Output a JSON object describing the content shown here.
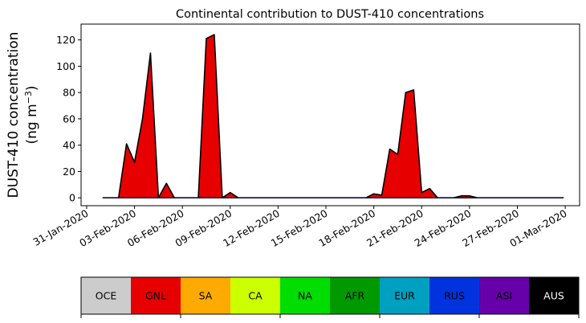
{
  "chart_data": {
    "type": "area",
    "title": "Continental contribution to DUST-410 concentrations",
    "ylabel_line1": "DUST-410 concentration",
    "ylabel_line2": "(ng m",
    "ylabel_sup": "−3",
    "ylabel_close": ")",
    "ylim": [
      -6,
      132
    ],
    "yticks": [
      0,
      20,
      40,
      60,
      80,
      100,
      120
    ],
    "x_start": "2020-01-31",
    "x_range_days": [
      -0.35,
      30.9
    ],
    "xticks": [
      "31-Jan-2020",
      "03-Feb-2020",
      "06-Feb-2020",
      "09-Feb-2020",
      "12-Feb-2020",
      "15-Feb-2020",
      "18-Feb-2020",
      "21-Feb-2020",
      "24-Feb-2020",
      "27-Feb-2020",
      "01-Mar-2020"
    ],
    "xtick_days": [
      0,
      3,
      6,
      9,
      12,
      15,
      18,
      21,
      24,
      27,
      30
    ],
    "grid": false,
    "series": [
      {
        "name": "GNL",
        "color": "#e60000",
        "points": [
          [
            1.0,
            0
          ],
          [
            2.0,
            0
          ],
          [
            2.5,
            41
          ],
          [
            3.0,
            27
          ],
          [
            3.5,
            60
          ],
          [
            4.0,
            110
          ],
          [
            4.5,
            0
          ],
          [
            5.0,
            11
          ],
          [
            5.5,
            0
          ],
          [
            6.0,
            0
          ],
          [
            6.5,
            0
          ],
          [
            7.0,
            0
          ],
          [
            7.5,
            121
          ],
          [
            8.0,
            124
          ],
          [
            8.5,
            0
          ],
          [
            9.0,
            4
          ],
          [
            9.5,
            0
          ],
          [
            10.0,
            0
          ],
          [
            11.0,
            0
          ],
          [
            12.0,
            0
          ],
          [
            13.0,
            0
          ],
          [
            14.0,
            0
          ],
          [
            15.0,
            0
          ],
          [
            16.0,
            0
          ],
          [
            17.0,
            0
          ],
          [
            17.5,
            0
          ],
          [
            18.0,
            3
          ],
          [
            18.5,
            2
          ],
          [
            19.0,
            37
          ],
          [
            19.5,
            33
          ],
          [
            20.0,
            80
          ],
          [
            20.5,
            82
          ],
          [
            21.0,
            4
          ],
          [
            21.5,
            7
          ],
          [
            22.0,
            0
          ],
          [
            22.5,
            0
          ],
          [
            23.0,
            0
          ],
          [
            23.5,
            1.5
          ],
          [
            24.0,
            1.5
          ],
          [
            24.5,
            0
          ],
          [
            25.0,
            0
          ],
          [
            26.0,
            0
          ],
          [
            27.0,
            0
          ],
          [
            28.0,
            0
          ],
          [
            29.0,
            0
          ],
          [
            29.9,
            0
          ]
        ]
      }
    ]
  },
  "legend": [
    {
      "label": "OCE",
      "color": "#cccccc",
      "text_color": "#000000"
    },
    {
      "label": "GNL",
      "color": "#e60000",
      "text_color": "#000000"
    },
    {
      "label": "SA",
      "color": "#ffaa00",
      "text_color": "#000000"
    },
    {
      "label": "CA",
      "color": "#ccff00",
      "text_color": "#000000"
    },
    {
      "label": "NA",
      "color": "#00dd00",
      "text_color": "#000000"
    },
    {
      "label": "AFR",
      "color": "#009900",
      "text_color": "#000000"
    },
    {
      "label": "EUR",
      "color": "#00a0c0",
      "text_color": "#000000"
    },
    {
      "label": "RUS",
      "color": "#0033dd",
      "text_color": "#000000"
    },
    {
      "label": "ASI",
      "color": "#6600aa",
      "text_color": "#000000"
    },
    {
      "label": "AUS",
      "color": "#000000",
      "text_color": "#ffffff"
    }
  ]
}
